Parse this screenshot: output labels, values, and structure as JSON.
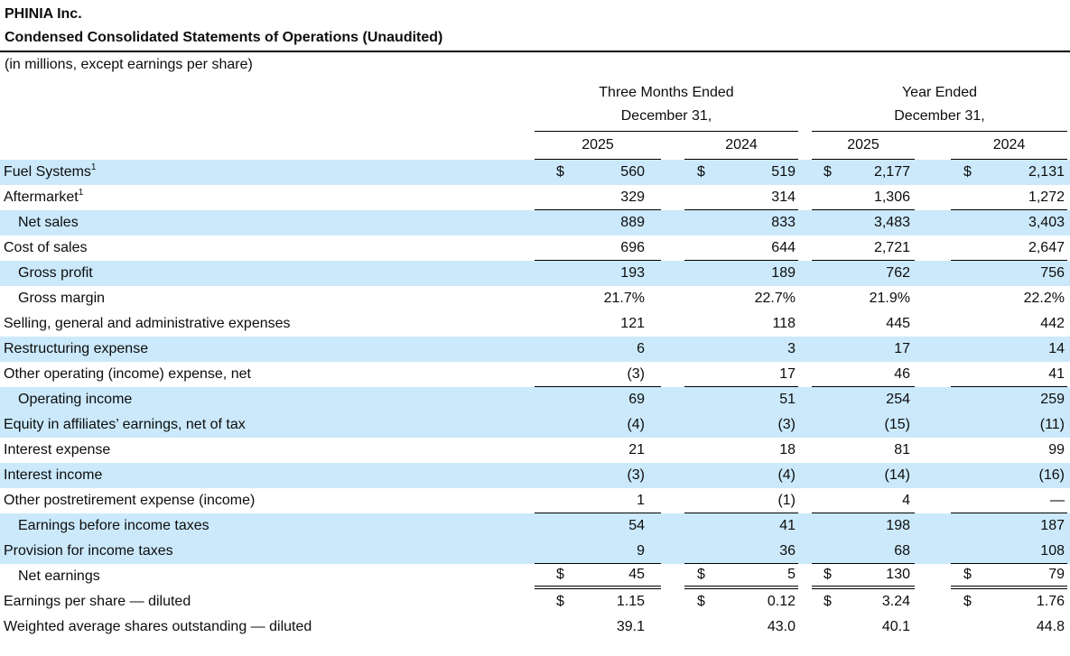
{
  "header": {
    "company": "PHINIA Inc.",
    "title": "Condensed Consolidated Statements of Operations (Unaudited)",
    "units_note": "(in millions, except earnings per share)"
  },
  "columns": {
    "groups": [
      {
        "line1": "Three Months Ended",
        "line2": "December 31,",
        "years": [
          "2025",
          "2024"
        ]
      },
      {
        "line1": "Year Ended",
        "line2": "December 31,",
        "years": [
          "2025",
          "2024"
        ]
      }
    ]
  },
  "currency_symbol": "$",
  "colors": {
    "row_highlight": "#cbe9fb",
    "text": "#0d0d0d",
    "rule": "#000000"
  },
  "rows": [
    {
      "label": "Fuel Systems",
      "sup": "1",
      "indent": false,
      "highlight": true,
      "dollar": true,
      "values": [
        "560",
        "519",
        "2,177",
        "2,131"
      ],
      "border": "none"
    },
    {
      "label": "Aftermarket",
      "sup": "1",
      "indent": false,
      "highlight": false,
      "dollar": false,
      "values": [
        "329",
        "314",
        "1,306",
        "1,272"
      ],
      "border": "single"
    },
    {
      "label": "Net sales",
      "indent": true,
      "highlight": true,
      "dollar": false,
      "values": [
        "889",
        "833",
        "3,483",
        "3,403"
      ],
      "border": "none"
    },
    {
      "label": "Cost of sales",
      "indent": false,
      "highlight": false,
      "dollar": false,
      "values": [
        "696",
        "644",
        "2,721",
        "2,647"
      ],
      "border": "single"
    },
    {
      "label": "Gross profit",
      "indent": true,
      "highlight": true,
      "dollar": false,
      "values": [
        "193",
        "189",
        "762",
        "756"
      ],
      "border": "none"
    },
    {
      "label": "Gross margin",
      "indent": true,
      "highlight": false,
      "dollar": false,
      "values": [
        "21.7%",
        "22.7%",
        "21.9%",
        "22.2%"
      ],
      "border": "none"
    },
    {
      "label": "Selling, general and administrative expenses",
      "indent": false,
      "highlight": false,
      "dollar": false,
      "values": [
        "121",
        "118",
        "445",
        "442"
      ],
      "border": "none"
    },
    {
      "label": "Restructuring expense",
      "indent": false,
      "highlight": true,
      "dollar": false,
      "values": [
        "6",
        "3",
        "17",
        "14"
      ],
      "border": "none"
    },
    {
      "label": "Other operating (income) expense, net",
      "indent": false,
      "highlight": false,
      "dollar": false,
      "values": [
        "(3)",
        "17",
        "46",
        "41"
      ],
      "border": "single"
    },
    {
      "label": "Operating income",
      "indent": true,
      "highlight": true,
      "dollar": false,
      "values": [
        "69",
        "51",
        "254",
        "259"
      ],
      "border": "none"
    },
    {
      "label": "Equity in affiliates’ earnings, net of tax",
      "indent": false,
      "highlight": true,
      "dollar": false,
      "values": [
        "(4)",
        "(3)",
        "(15)",
        "(11)"
      ],
      "border": "none"
    },
    {
      "label": "Interest expense",
      "indent": false,
      "highlight": false,
      "dollar": false,
      "values": [
        "21",
        "18",
        "81",
        "99"
      ],
      "border": "none"
    },
    {
      "label": "Interest income",
      "indent": false,
      "highlight": true,
      "dollar": false,
      "values": [
        "(3)",
        "(4)",
        "(14)",
        "(16)"
      ],
      "border": "none"
    },
    {
      "label": "Other postretirement expense (income)",
      "indent": false,
      "highlight": false,
      "dollar": false,
      "values": [
        "1",
        "(1)",
        "4",
        "—"
      ],
      "border": "single"
    },
    {
      "label": "Earnings before income taxes",
      "indent": true,
      "highlight": true,
      "dollar": false,
      "values": [
        "54",
        "41",
        "198",
        "187"
      ],
      "border": "none"
    },
    {
      "label": "Provision for income taxes",
      "indent": false,
      "highlight": true,
      "dollar": false,
      "values": [
        "9",
        "36",
        "68",
        "108"
      ],
      "border": "single"
    },
    {
      "label": "Net earnings",
      "indent": true,
      "highlight": false,
      "dollar": true,
      "values": [
        "45",
        "5",
        "130",
        "79"
      ],
      "border": "double"
    },
    {
      "label": "Earnings per share — diluted",
      "indent": false,
      "highlight": false,
      "dollar": true,
      "values": [
        "1.15",
        "0.12",
        "3.24",
        "1.76"
      ],
      "border": "none"
    },
    {
      "label": "Weighted average shares outstanding — diluted",
      "indent": false,
      "highlight": false,
      "dollar": false,
      "values": [
        "39.1",
        "43.0",
        "40.1",
        "44.8"
      ],
      "border": "none"
    }
  ]
}
